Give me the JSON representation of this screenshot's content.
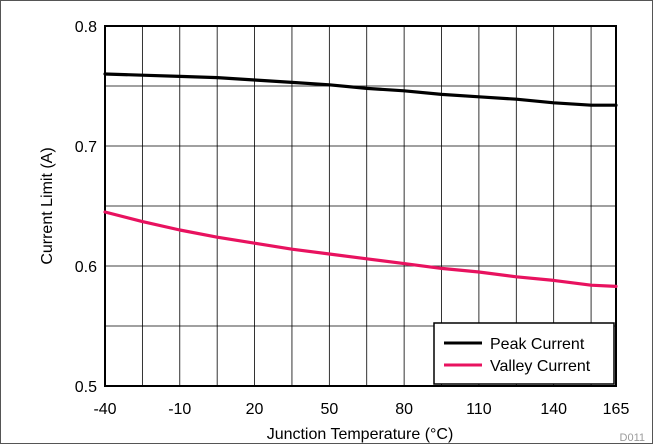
{
  "chart_data": {
    "type": "line",
    "title": "",
    "xlabel": "Junction Temperature (°C)",
    "ylabel": "Current Limit (A)",
    "xlim": [
      -40,
      165
    ],
    "ylim": [
      0.5,
      0.8
    ],
    "xticks": [
      -40,
      -10,
      20,
      50,
      80,
      110,
      140,
      165
    ],
    "xtick_labels": [
      "-40",
      "-10",
      "20",
      "50",
      "80",
      "110",
      "140",
      "165"
    ],
    "yticks": [
      0.5,
      0.6,
      0.7,
      0.8
    ],
    "ytick_labels": [
      "0.5",
      "0.6",
      "0.7",
      "0.8"
    ],
    "grid": true,
    "legend_position": "bottom-right",
    "series": [
      {
        "name": "Peak Current",
        "color": "#000000",
        "x": [
          -40,
          -25,
          -10,
          5,
          20,
          35,
          50,
          65,
          80,
          95,
          110,
          125,
          140,
          155,
          165
        ],
        "y": [
          0.76,
          0.759,
          0.758,
          0.757,
          0.755,
          0.753,
          0.751,
          0.748,
          0.746,
          0.743,
          0.741,
          0.739,
          0.736,
          0.734,
          0.734
        ]
      },
      {
        "name": "Valley Current",
        "color": "#e8125f",
        "x": [
          -40,
          -25,
          -10,
          5,
          20,
          35,
          50,
          65,
          80,
          95,
          110,
          125,
          140,
          155,
          165
        ],
        "y": [
          0.645,
          0.637,
          0.63,
          0.624,
          0.619,
          0.614,
          0.61,
          0.606,
          0.602,
          0.598,
          0.595,
          0.591,
          0.588,
          0.584,
          0.583
        ]
      }
    ],
    "figure_id": "D011"
  }
}
